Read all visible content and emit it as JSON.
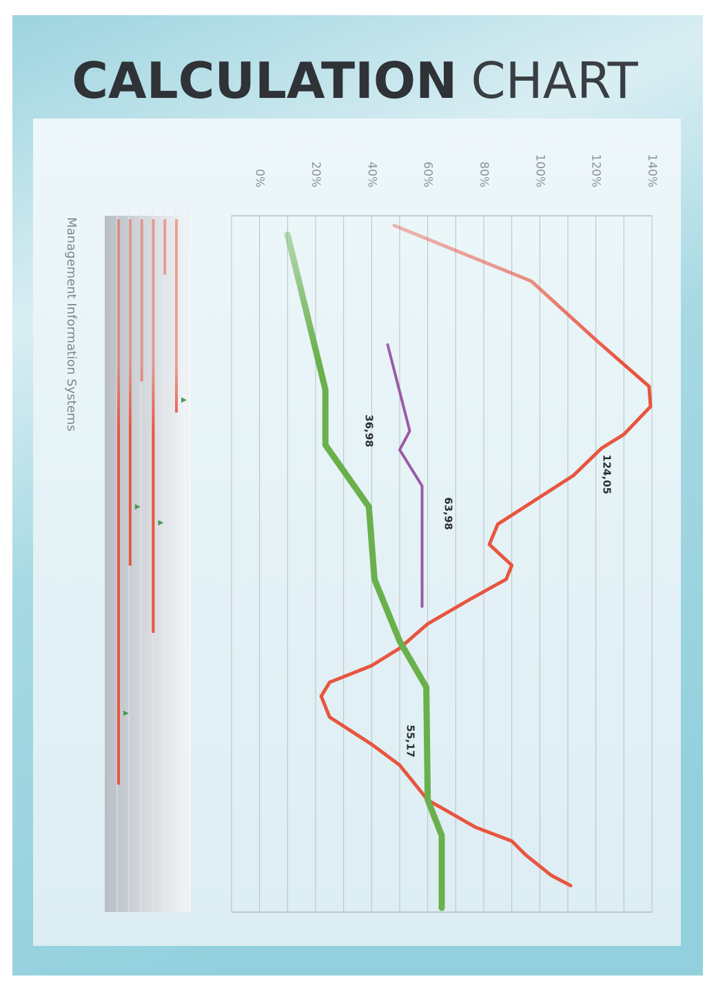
{
  "header": {
    "title_bold": "CALCULATION",
    "title_light": "CHART"
  },
  "chart_data": [
    {
      "type": "line",
      "orientation": "rotated",
      "xlim": [
        0,
        100
      ],
      "ylim": [
        -10,
        140
      ],
      "yticks": [
        {
          "value": 0,
          "label": "0%"
        },
        {
          "value": 20,
          "label": "20%"
        },
        {
          "value": 40,
          "label": "40%"
        },
        {
          "value": 60,
          "label": "60%"
        },
        {
          "value": 80,
          "label": "80%"
        },
        {
          "value": 100,
          "label": "100%"
        },
        {
          "value": 120,
          "label": "120%"
        },
        {
          "value": 140,
          "label": "140%"
        }
      ],
      "minor_gridlines": [
        -10,
        10,
        30,
        50,
        70,
        90,
        110,
        130
      ],
      "grid": true,
      "series": [
        {
          "color": "#e8553f",
          "x": [
            1.4,
            9.4,
            18,
            24.5,
            27.4,
            31.4,
            33.4,
            37.3,
            44.3,
            47.2,
            50.2,
            52.2,
            55.1,
            58.6,
            62.1,
            64.6,
            67,
            69,
            72,
            75.9,
            78.9,
            83.9,
            87.8,
            89.8,
            91.8,
            94.7,
            96.2
          ],
          "values": [
            48,
            97,
            120.5,
            139,
            139.5,
            130,
            122,
            112,
            85,
            82,
            90,
            88,
            75,
            60,
            50,
            40,
            25,
            22,
            25,
            40,
            50,
            60,
            77,
            90,
            95,
            104,
            111
          ]
        },
        {
          "color": "#6ab04c",
          "x": [
            2.7,
            22.5,
            25,
            32.9,
            41.8,
            52.2,
            61.1,
            67.7,
            83.9,
            89,
            99.4
          ],
          "values": [
            10,
            22,
            23.5,
            23.5,
            39,
            41,
            50,
            59.5,
            60,
            65,
            65
          ]
        },
        {
          "color": "#9b59a6",
          "x": [
            18.5,
            30.9,
            33.6,
            38.8,
            56.1
          ],
          "values": [
            45.7,
            53.6,
            50,
            58,
            58
          ]
        }
      ],
      "annotations": [
        {
          "text": "124,05"
        },
        {
          "text": "36,98"
        },
        {
          "text": "63,98"
        },
        {
          "text": "55,17"
        }
      ]
    },
    {
      "type": "bar",
      "orientation": "vertical",
      "label": "Management Information Systems",
      "values": [
        81.6,
        50.0,
        23.4,
        59.7,
        8.0,
        27.9
      ],
      "markers": [
        71.3,
        41.5,
        null,
        43.8,
        null,
        26.1
      ],
      "color": "#e8553f",
      "marker_color": "#4a9a52"
    }
  ]
}
